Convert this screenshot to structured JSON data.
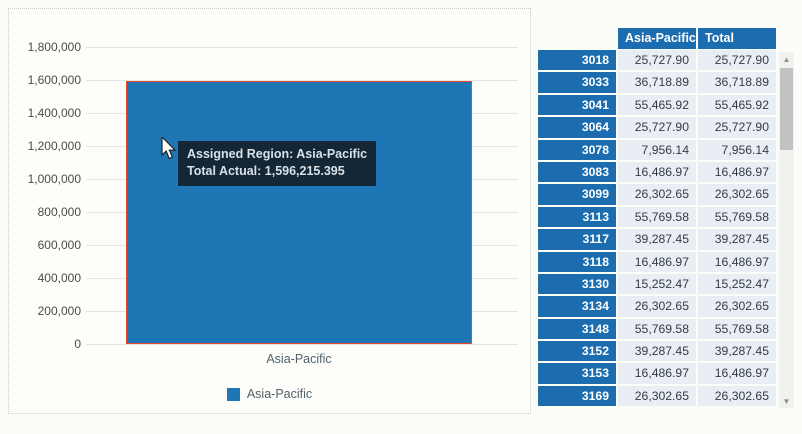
{
  "colors": {
    "bar_fill": "#1f76b4",
    "bar_border": "#e8492a",
    "table_header_blue": "#1c6db0",
    "table_cell_bg": "#e9eef4",
    "tooltip_bg": "#132737"
  },
  "chart": {
    "y_axis_ticks": [
      "0",
      "200,000",
      "400,000",
      "600,000",
      "800,000",
      "1,000,000",
      "1,200,000",
      "1,400,000",
      "1,600,000",
      "1,800,000"
    ],
    "x_category_label": "Asia-Pacific",
    "legend": {
      "label": "Asia-Pacific"
    },
    "tooltip": {
      "line1": "Assigned Region: Asia-Pacific",
      "line2": "Total Actual: 1,596,215.395"
    }
  },
  "chart_data": {
    "type": "bar",
    "categories": [
      "Asia-Pacific"
    ],
    "series": [
      {
        "name": "Asia-Pacific",
        "values": [
          1596215.395
        ]
      }
    ],
    "title": "",
    "xlabel": "",
    "ylabel": "",
    "ylim": [
      0,
      1800000
    ],
    "y_tick_step": 200000,
    "grid": true,
    "legend_position": "bottom",
    "tooltip_values": {
      "assigned_region": "Asia-Pacific",
      "total_actual": 1596215.395
    }
  },
  "table": {
    "columns": [
      "Asia-Pacific",
      "Total"
    ],
    "rows": [
      {
        "id": "3018",
        "values": [
          "25,727.90",
          "25,727.90"
        ]
      },
      {
        "id": "3033",
        "values": [
          "36,718.89",
          "36,718.89"
        ]
      },
      {
        "id": "3041",
        "values": [
          "55,465.92",
          "55,465.92"
        ]
      },
      {
        "id": "3064",
        "values": [
          "25,727.90",
          "25,727.90"
        ]
      },
      {
        "id": "3078",
        "values": [
          "7,956.14",
          "7,956.14"
        ]
      },
      {
        "id": "3083",
        "values": [
          "16,486.97",
          "16,486.97"
        ]
      },
      {
        "id": "3099",
        "values": [
          "26,302.65",
          "26,302.65"
        ]
      },
      {
        "id": "3113",
        "values": [
          "55,769.58",
          "55,769.58"
        ]
      },
      {
        "id": "3117",
        "values": [
          "39,287.45",
          "39,287.45"
        ]
      },
      {
        "id": "3118",
        "values": [
          "16,486.97",
          "16,486.97"
        ]
      },
      {
        "id": "3130",
        "values": [
          "15,252.47",
          "15,252.47"
        ]
      },
      {
        "id": "3134",
        "values": [
          "26,302.65",
          "26,302.65"
        ]
      },
      {
        "id": "3148",
        "values": [
          "55,769.58",
          "55,769.58"
        ]
      },
      {
        "id": "3152",
        "values": [
          "39,287.45",
          "39,287.45"
        ]
      },
      {
        "id": "3153",
        "values": [
          "16,486.97",
          "16,486.97"
        ]
      },
      {
        "id": "3169",
        "values": [
          "26,302.65",
          "26,302.65"
        ]
      }
    ]
  },
  "scrollbar": {
    "up_icon": "▲",
    "down_icon": "▼"
  }
}
